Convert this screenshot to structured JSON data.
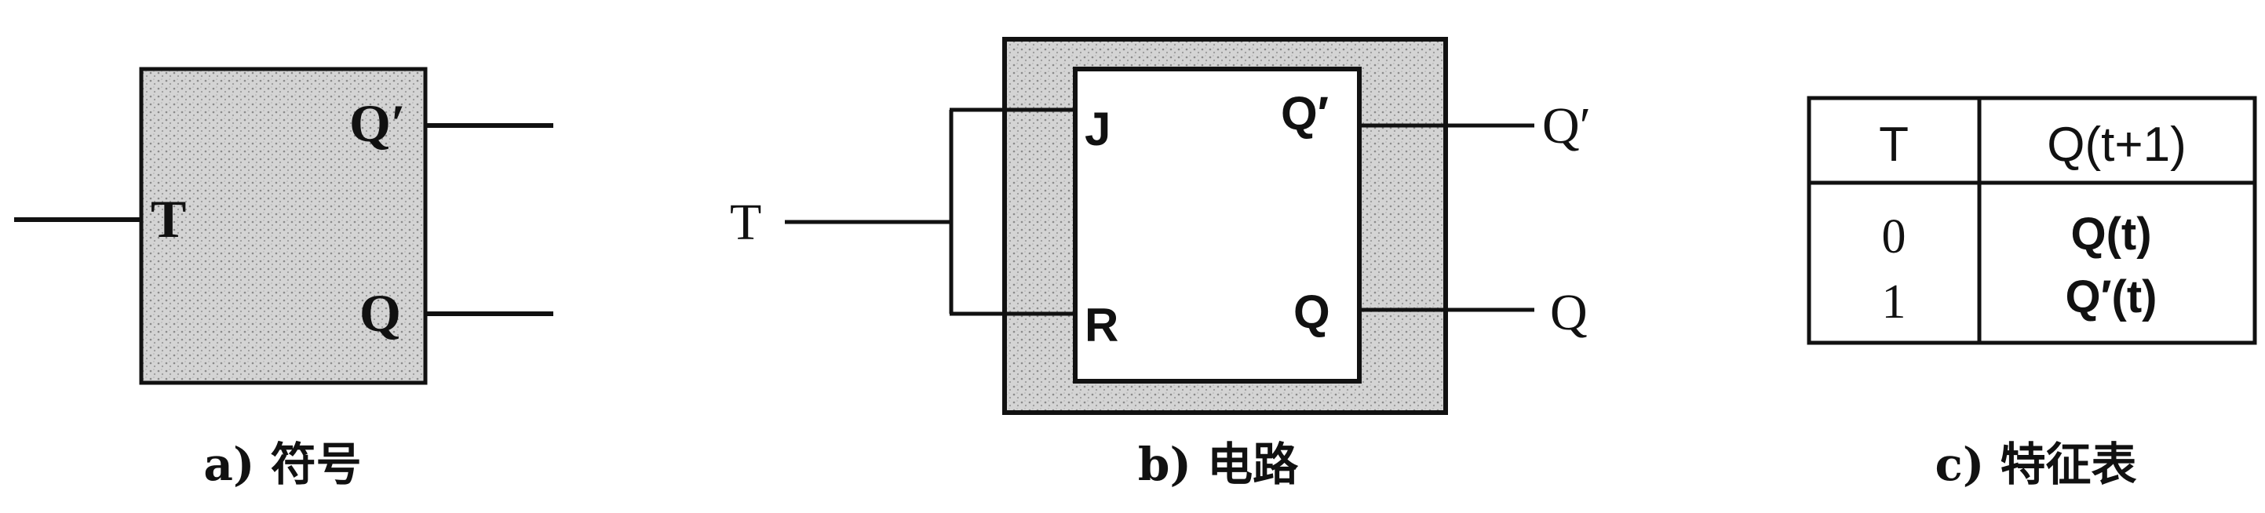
{
  "colors": {
    "ink": "#111111",
    "stipple_fill": "#c9c9c9",
    "background": "#ffffff"
  },
  "symbol": {
    "input_t": "T",
    "output_q_prime": "Q′",
    "output_q": "Q",
    "caption": "a) 符号"
  },
  "circuit": {
    "input_t": "T",
    "pin_j": "J",
    "pin_r": "R",
    "pin_q_prime": "Q′",
    "pin_q": "Q",
    "output_q_prime": "Q′",
    "output_q": "Q",
    "caption": "b) 电路"
  },
  "table": {
    "header_t": "T",
    "header_next": "Q(t+1)",
    "row0_t": "0",
    "row0_next": "Q(t)",
    "row1_t": "1",
    "row1_next": "Q′(t)",
    "caption": "c) 特征表"
  }
}
